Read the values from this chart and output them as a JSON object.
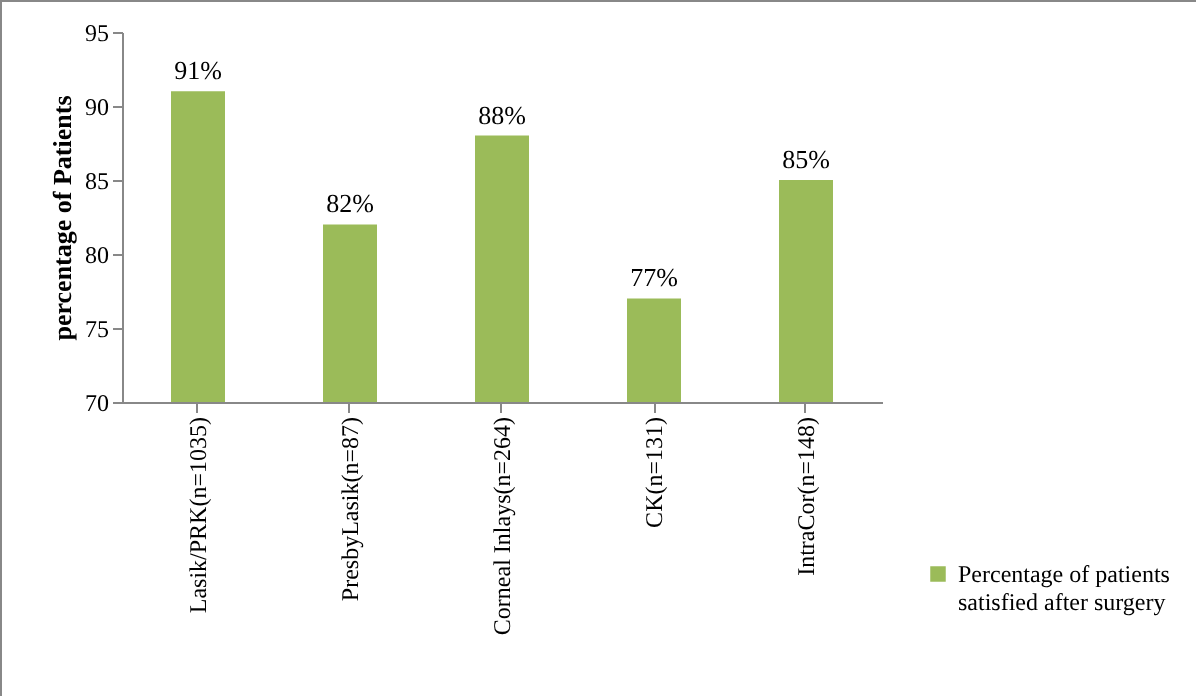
{
  "chart_data": {
    "type": "bar",
    "ylabel": "percentage of Patients",
    "categories": [
      "Lasik/PRK(n=1035)",
      "PresbyLasik(n=87)",
      "Corneal Inlays(n=264)",
      "CK(n=131)",
      "IntraCor(n=148)"
    ],
    "series": [
      {
        "name": "Percentage of patients satisfied after surgery",
        "color": "#9bbb59",
        "values": [
          91,
          82,
          88,
          77,
          85
        ]
      }
    ],
    "value_labels": [
      "91%",
      "82%",
      "88%",
      "77%",
      "85%"
    ],
    "ylim": [
      70,
      95
    ],
    "yticks": [
      70,
      75,
      80,
      85,
      90,
      95
    ],
    "grid": false,
    "legend": "bottom right"
  }
}
